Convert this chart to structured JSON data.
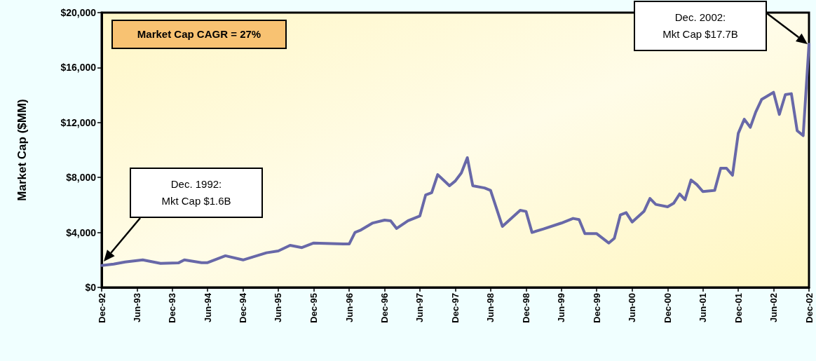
{
  "chart_data": {
    "type": "line",
    "ylabel": "Market Cap ($MM)",
    "x": [
      "1992-12",
      "1993-02",
      "1993-04",
      "1993-07",
      "1993-10",
      "1994-01",
      "1994-02",
      "1994-05",
      "1994-06",
      "1994-09",
      "1994-12",
      "1995-04",
      "1995-06",
      "1995-08",
      "1995-10",
      "1995-12",
      "1996-05",
      "1996-06",
      "1996-07",
      "1996-08",
      "1996-10",
      "1996-12",
      "1997-01",
      "1997-02",
      "1997-04",
      "1997-06",
      "1997-07",
      "1997-08",
      "1997-09",
      "1997-11",
      "1997-12",
      "1998-01",
      "1998-02",
      "1998-03",
      "1998-05",
      "1998-06",
      "1998-08",
      "1998-11",
      "1998-12",
      "1999-01",
      "1999-03",
      "1999-06",
      "1999-08",
      "1999-09",
      "1999-10",
      "1999-12",
      "2000-02",
      "2000-03",
      "2000-04",
      "2000-05",
      "2000-06",
      "2000-08",
      "2000-09",
      "2000-10",
      "2000-12",
      "2001-01",
      "2001-02",
      "2001-03",
      "2001-04",
      "2001-05",
      "2001-06",
      "2001-08",
      "2001-09",
      "2001-10",
      "2001-11",
      "2001-12",
      "2002-01",
      "2002-02",
      "2002-03",
      "2002-04",
      "2002-06",
      "2002-07",
      "2002-08",
      "2002-09",
      "2002-10",
      "2002-11",
      "2002-12"
    ],
    "series": [
      {
        "color": "#6868a8",
        "values": [
          1600,
          1700,
          1850,
          2000,
          1750,
          1780,
          2000,
          1800,
          1800,
          2300,
          2000,
          2520,
          2650,
          3060,
          2900,
          3230,
          3160,
          3160,
          4000,
          4180,
          4690,
          4900,
          4850,
          4290,
          4850,
          5200,
          6730,
          6890,
          8210,
          7400,
          7750,
          8330,
          9440,
          7400,
          7240,
          7060,
          4440,
          5610,
          5530,
          4000,
          4250,
          4680,
          5020,
          4940,
          3910,
          3910,
          3230,
          3570,
          5270,
          5440,
          4760,
          5530,
          6470,
          6040,
          5870,
          6120,
          6800,
          6380,
          7820,
          7480,
          6980,
          7060,
          8670,
          8670,
          8160,
          11220,
          12240,
          11650,
          12760,
          13690,
          14200,
          12590,
          14030,
          14100,
          11400,
          11050,
          17700
        ]
      }
    ],
    "xlim": [
      "1992-12",
      "2002-12"
    ],
    "xticks": [
      {
        "value": "1992-12",
        "label": "Dec-92"
      },
      {
        "value": "1993-06",
        "label": "Jun-93"
      },
      {
        "value": "1993-12",
        "label": "Dec-93"
      },
      {
        "value": "1994-06",
        "label": "Jun-94"
      },
      {
        "value": "1994-12",
        "label": "Dec-94"
      },
      {
        "value": "1995-06",
        "label": "Jun-95"
      },
      {
        "value": "1995-12",
        "label": "Dec-95"
      },
      {
        "value": "1996-06",
        "label": "Jun-96"
      },
      {
        "value": "1996-12",
        "label": "Dec-96"
      },
      {
        "value": "1997-06",
        "label": "Jun-97"
      },
      {
        "value": "1997-12",
        "label": "Dec-97"
      },
      {
        "value": "1998-06",
        "label": "Jun-98"
      },
      {
        "value": "1998-12",
        "label": "Dec-98"
      },
      {
        "value": "1999-06",
        "label": "Jun-99"
      },
      {
        "value": "1999-12",
        "label": "Dec-99"
      },
      {
        "value": "2000-06",
        "label": "Jun-00"
      },
      {
        "value": "2000-12",
        "label": "Dec-00"
      },
      {
        "value": "2001-06",
        "label": "Jun-01"
      },
      {
        "value": "2001-12",
        "label": "Dec-01"
      },
      {
        "value": "2002-06",
        "label": "Jun-02"
      },
      {
        "value": "2002-12",
        "label": "Dec-02"
      }
    ],
    "ylim": [
      0,
      20000
    ],
    "yticks": [
      {
        "value": 0,
        "label": "$0"
      },
      {
        "value": 4000,
        "label": "$4,000"
      },
      {
        "value": 8000,
        "label": "$8,000"
      },
      {
        "value": 12000,
        "label": "$12,000"
      },
      {
        "value": 16000,
        "label": "$16,000"
      },
      {
        "value": 20000,
        "label": "$20,000"
      }
    ],
    "annotations": [
      "Market Cap CAGR = 27%",
      "Dec. 1992:\nMkt Cap $1.6B",
      "Dec. 2002:\nMkt Cap $17.7B"
    ],
    "grid": false,
    "marker": "none",
    "line_style": "solid"
  }
}
